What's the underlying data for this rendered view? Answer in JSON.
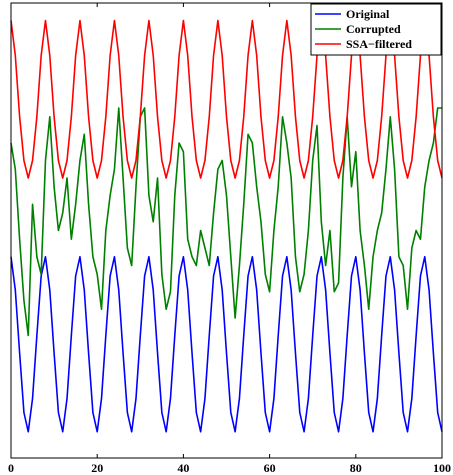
{
  "chart_data": {
    "type": "line",
    "title": "",
    "xlabel": "",
    "ylabel": "",
    "xlim": [
      0,
      100
    ],
    "ylim": [
      -1.3,
      3.9
    ],
    "grid": false,
    "legend_position": "top-right",
    "x_ticks": [
      "0",
      "20",
      "40",
      "60",
      "80",
      "100"
    ],
    "series": [
      {
        "name": "Original",
        "color": "#0000ff",
        "x": [
          0,
          1,
          2,
          3,
          4,
          5,
          6,
          7,
          8,
          9,
          10,
          11,
          12,
          13,
          14,
          15,
          16,
          17,
          18,
          19,
          20,
          21,
          22,
          23,
          24,
          25,
          26,
          27,
          28,
          29,
          30,
          31,
          32,
          33,
          34,
          35,
          36,
          37,
          38,
          39,
          40,
          41,
          42,
          43,
          44,
          45,
          46,
          47,
          48,
          49,
          50,
          51,
          52,
          53,
          54,
          55,
          56,
          57,
          58,
          59,
          60,
          61,
          62,
          63,
          64,
          65,
          66,
          67,
          68,
          69,
          70,
          71,
          72,
          73,
          74,
          75,
          76,
          77,
          78,
          79,
          80,
          81,
          82,
          83,
          84,
          85,
          86,
          87,
          88,
          89,
          90,
          91,
          92,
          93,
          94,
          95,
          96,
          97,
          98,
          99,
          100
        ],
        "values": [
          1.0,
          0.62,
          -0.1,
          -0.78,
          -1.0,
          -0.62,
          0.1,
          0.78,
          1.0,
          0.62,
          -0.1,
          -0.78,
          -1.0,
          -0.62,
          0.1,
          0.78,
          1.0,
          0.62,
          -0.1,
          -0.78,
          -1.0,
          -0.62,
          0.1,
          0.78,
          1.0,
          0.62,
          -0.1,
          -0.78,
          -1.0,
          -0.62,
          0.1,
          0.78,
          1.0,
          0.62,
          -0.1,
          -0.78,
          -1.0,
          -0.62,
          0.1,
          0.78,
          1.0,
          0.62,
          -0.1,
          -0.78,
          -1.0,
          -0.62,
          0.1,
          0.78,
          1.0,
          0.62,
          -0.1,
          -0.78,
          -1.0,
          -0.62,
          0.1,
          0.78,
          1.0,
          0.62,
          -0.1,
          -0.78,
          -1.0,
          -0.62,
          0.1,
          0.78,
          1.0,
          0.62,
          -0.1,
          -0.78,
          -1.0,
          -0.62,
          0.1,
          0.78,
          1.0,
          0.62,
          -0.1,
          -0.78,
          -1.0,
          -0.62,
          0.1,
          0.78,
          1.0,
          0.62,
          -0.1,
          -0.78,
          -1.0,
          -0.62,
          0.1,
          0.78,
          1.0,
          0.62,
          -0.1,
          -0.78,
          -1.0,
          -0.62,
          0.1,
          0.78,
          1.0,
          0.62,
          -0.1,
          -0.78,
          -1.0
        ]
      },
      {
        "name": "Corrupted",
        "color": "#008000",
        "x": [
          0,
          1,
          2,
          3,
          4,
          5,
          6,
          7,
          8,
          9,
          10,
          11,
          12,
          13,
          14,
          15,
          16,
          17,
          18,
          19,
          20,
          21,
          22,
          23,
          24,
          25,
          26,
          27,
          28,
          29,
          30,
          31,
          32,
          33,
          34,
          35,
          36,
          37,
          38,
          39,
          40,
          41,
          42,
          43,
          44,
          45,
          46,
          47,
          48,
          49,
          50,
          51,
          52,
          53,
          54,
          55,
          56,
          57,
          58,
          59,
          60,
          61,
          62,
          63,
          64,
          65,
          66,
          67,
          68,
          69,
          70,
          71,
          72,
          73,
          74,
          75,
          76,
          77,
          78,
          79,
          80,
          81,
          82,
          83,
          84,
          85,
          86,
          87,
          88,
          89,
          90,
          91,
          92,
          93,
          94,
          95,
          96,
          97,
          98,
          99,
          100
        ],
        "values": [
          2.3,
          2.0,
          1.2,
          0.5,
          0.1,
          1.6,
          1.0,
          0.8,
          2.1,
          2.6,
          1.8,
          1.3,
          1.5,
          1.9,
          1.2,
          1.6,
          2.1,
          2.4,
          1.6,
          1.0,
          0.8,
          0.4,
          1.3,
          1.7,
          2.0,
          2.7,
          1.9,
          1.1,
          0.9,
          1.8,
          2.6,
          2.7,
          1.7,
          1.4,
          1.9,
          0.8,
          0.4,
          0.6,
          1.7,
          2.3,
          2.2,
          1.2,
          1.0,
          0.9,
          1.3,
          1.1,
          0.9,
          1.5,
          2.0,
          2.1,
          1.7,
          1.0,
          0.3,
          0.9,
          1.6,
          2.4,
          2.3,
          1.8,
          1.4,
          0.8,
          0.6,
          1.3,
          1.8,
          2.6,
          2.3,
          1.9,
          1.0,
          0.6,
          0.8,
          1.3,
          2.1,
          2.5,
          1.4,
          0.9,
          1.3,
          0.6,
          0.7,
          1.9,
          2.6,
          1.8,
          2.2,
          1.3,
          0.9,
          0.4,
          1.0,
          1.3,
          1.5,
          2.0,
          2.6,
          2.0,
          1.0,
          0.9,
          0.4,
          1.1,
          1.3,
          1.2,
          1.8,
          2.1,
          2.3,
          2.7,
          2.7
        ]
      },
      {
        "name": "SSA−filtered",
        "color": "#ff0000",
        "x": [
          0,
          1,
          2,
          3,
          4,
          5,
          6,
          7,
          8,
          9,
          10,
          11,
          12,
          13,
          14,
          15,
          16,
          17,
          18,
          19,
          20,
          21,
          22,
          23,
          24,
          25,
          26,
          27,
          28,
          29,
          30,
          31,
          32,
          33,
          34,
          35,
          36,
          37,
          38,
          39,
          40,
          41,
          42,
          43,
          44,
          45,
          46,
          47,
          48,
          49,
          50,
          51,
          52,
          53,
          54,
          55,
          56,
          57,
          58,
          59,
          60,
          61,
          62,
          63,
          64,
          65,
          66,
          67,
          68,
          69,
          70,
          71,
          72,
          73,
          74,
          75,
          76,
          77,
          78,
          79,
          80,
          81,
          82,
          83,
          84,
          85,
          86,
          87,
          88,
          89,
          90,
          91,
          92,
          93,
          94,
          95,
          96,
          97,
          98,
          99,
          100
        ],
        "values": [
          3.7,
          3.3,
          2.6,
          2.1,
          1.9,
          2.1,
          2.6,
          3.3,
          3.7,
          3.3,
          2.6,
          2.1,
          1.9,
          2.1,
          2.6,
          3.3,
          3.7,
          3.3,
          2.6,
          2.1,
          1.9,
          2.1,
          2.6,
          3.3,
          3.7,
          3.3,
          2.6,
          2.1,
          1.9,
          2.1,
          2.6,
          3.3,
          3.7,
          3.3,
          2.6,
          2.1,
          1.9,
          2.1,
          2.6,
          3.3,
          3.7,
          3.3,
          2.6,
          2.1,
          1.9,
          2.1,
          2.6,
          3.3,
          3.7,
          3.3,
          2.6,
          2.1,
          1.9,
          2.1,
          2.6,
          3.3,
          3.7,
          3.3,
          2.6,
          2.1,
          1.9,
          2.1,
          2.6,
          3.3,
          3.7,
          3.3,
          2.6,
          2.1,
          1.9,
          2.1,
          2.6,
          3.3,
          3.7,
          3.3,
          2.6,
          2.1,
          1.9,
          2.1,
          2.6,
          3.3,
          3.7,
          3.3,
          2.6,
          2.1,
          1.9,
          2.1,
          2.6,
          3.3,
          3.7,
          3.3,
          2.6,
          2.1,
          1.9,
          2.1,
          2.6,
          3.3,
          3.7,
          3.3,
          2.6,
          2.1,
          1.9
        ]
      }
    ]
  }
}
